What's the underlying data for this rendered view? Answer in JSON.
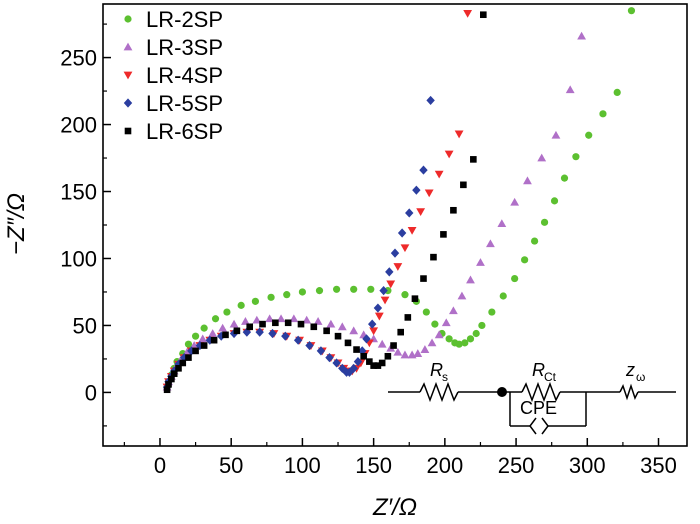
{
  "chart_data": {
    "type": "scatter",
    "title": "",
    "xlabel": "Z′/Ω",
    "ylabel": "−Z″/Ω",
    "xlim": [
      -40,
      370
    ],
    "ylim": [
      -40,
      290
    ],
    "xticks": [
      0,
      50,
      100,
      150,
      200,
      250,
      300,
      350
    ],
    "yticks": [
      0,
      50,
      100,
      150,
      200,
      250
    ],
    "legend_position": "top-left",
    "series": [
      {
        "name": "LR-2SP",
        "color": "#5cc030",
        "marker": "circle",
        "x": [
          5,
          6,
          8,
          10,
          12,
          16,
          20,
          25,
          31,
          39,
          47,
          57,
          67,
          78,
          89,
          100,
          112,
          124,
          136,
          148,
          160,
          172,
          180,
          187,
          193,
          198,
          203,
          207,
          210,
          214,
          218,
          222,
          226,
          233,
          241,
          249,
          256,
          263,
          270,
          277,
          284,
          292,
          301,
          311,
          321,
          331
        ],
        "y": [
          4,
          8,
          13,
          18,
          23,
          29,
          36,
          42,
          48,
          55,
          60,
          65,
          68,
          71,
          73,
          75,
          76,
          77,
          77,
          77,
          76,
          73,
          68,
          60,
          51,
          44,
          40,
          37,
          36,
          37,
          40,
          44,
          50,
          60,
          72,
          85,
          99,
          113,
          127,
          143,
          160,
          176,
          192,
          208,
          224,
          285
        ]
      },
      {
        "name": "LR-3SP",
        "color": "#b070c8",
        "marker": "triangle-up",
        "x": [
          5,
          6,
          8,
          10,
          12,
          15,
          19,
          24,
          30,
          37,
          44,
          52,
          60,
          68,
          77,
          85,
          94,
          103,
          111,
          120,
          128,
          136,
          143,
          150,
          156,
          162,
          167,
          172,
          177,
          181,
          186,
          191,
          196,
          201,
          206,
          212,
          218,
          225,
          232,
          240,
          249,
          258,
          268,
          278,
          288,
          296
        ],
        "y": [
          4,
          8,
          12,
          16,
          20,
          25,
          30,
          35,
          40,
          44,
          48,
          51,
          53,
          54,
          55,
          55,
          55,
          54,
          53,
          51,
          49,
          46,
          43,
          40,
          36,
          33,
          30,
          28,
          28,
          29,
          32,
          37,
          43,
          52,
          61,
          72,
          84,
          97,
          111,
          126,
          142,
          158,
          175,
          192,
          226,
          266
        ]
      },
      {
        "name": "LR-4SP",
        "color": "#ee2a2a",
        "marker": "triangle-down",
        "x": [
          5,
          6,
          8,
          10,
          13,
          17,
          22,
          28,
          35,
          43,
          52,
          61,
          70,
          80,
          89,
          98,
          106,
          114,
          120,
          125,
          129,
          132,
          135,
          138,
          141,
          144,
          147,
          150,
          154,
          158,
          162,
          167,
          172,
          177,
          183,
          189,
          196,
          203,
          210,
          216
        ],
        "y": [
          4,
          8,
          12,
          16,
          21,
          26,
          31,
          35,
          39,
          42,
          44,
          45,
          45,
          44,
          42,
          39,
          35,
          31,
          26,
          22,
          18,
          16,
          16,
          18,
          22,
          29,
          37,
          46,
          57,
          69,
          81,
          94,
          108,
          121,
          135,
          149,
          163,
          178,
          193,
          283
        ]
      },
      {
        "name": "LR-5SP",
        "color": "#2b3ea0",
        "marker": "diamond",
        "x": [
          5,
          6,
          8,
          10,
          13,
          17,
          22,
          28,
          35,
          43,
          52,
          61,
          70,
          79,
          88,
          97,
          105,
          113,
          119,
          124,
          128,
          131,
          133,
          136,
          139,
          142,
          145,
          149,
          153,
          157,
          161,
          165,
          170,
          175,
          180,
          185,
          190
        ],
        "y": [
          4,
          8,
          12,
          16,
          21,
          26,
          31,
          35,
          39,
          42,
          44,
          45,
          45,
          44,
          42,
          39,
          35,
          31,
          26,
          22,
          18,
          15,
          15,
          18,
          23,
          31,
          40,
          51,
          63,
          76,
          90,
          104,
          119,
          134,
          151,
          166,
          218
        ]
      },
      {
        "name": "LR-6SP",
        "color": "#000000",
        "marker": "square",
        "x": [
          5,
          6,
          8,
          10,
          13,
          16,
          20,
          25,
          31,
          38,
          46,
          54,
          63,
          72,
          81,
          90,
          99,
          108,
          117,
          125,
          132,
          138,
          143,
          147,
          150,
          153,
          156,
          160,
          164,
          169,
          174,
          179,
          185,
          192,
          199,
          206,
          213,
          220,
          227
        ],
        "y": [
          2,
          6,
          10,
          14,
          18,
          22,
          26,
          31,
          35,
          39,
          43,
          46,
          49,
          51,
          52,
          52,
          51,
          49,
          46,
          42,
          37,
          32,
          27,
          23,
          20,
          20,
          22,
          27,
          35,
          45,
          56,
          70,
          85,
          101,
          118,
          136,
          155,
          174,
          282
        ]
      }
    ],
    "inset_circuit": {
      "labels": [
        "R",
        "s",
        "R",
        "Ct",
        "z",
        "ω",
        "CPE"
      ]
    }
  }
}
